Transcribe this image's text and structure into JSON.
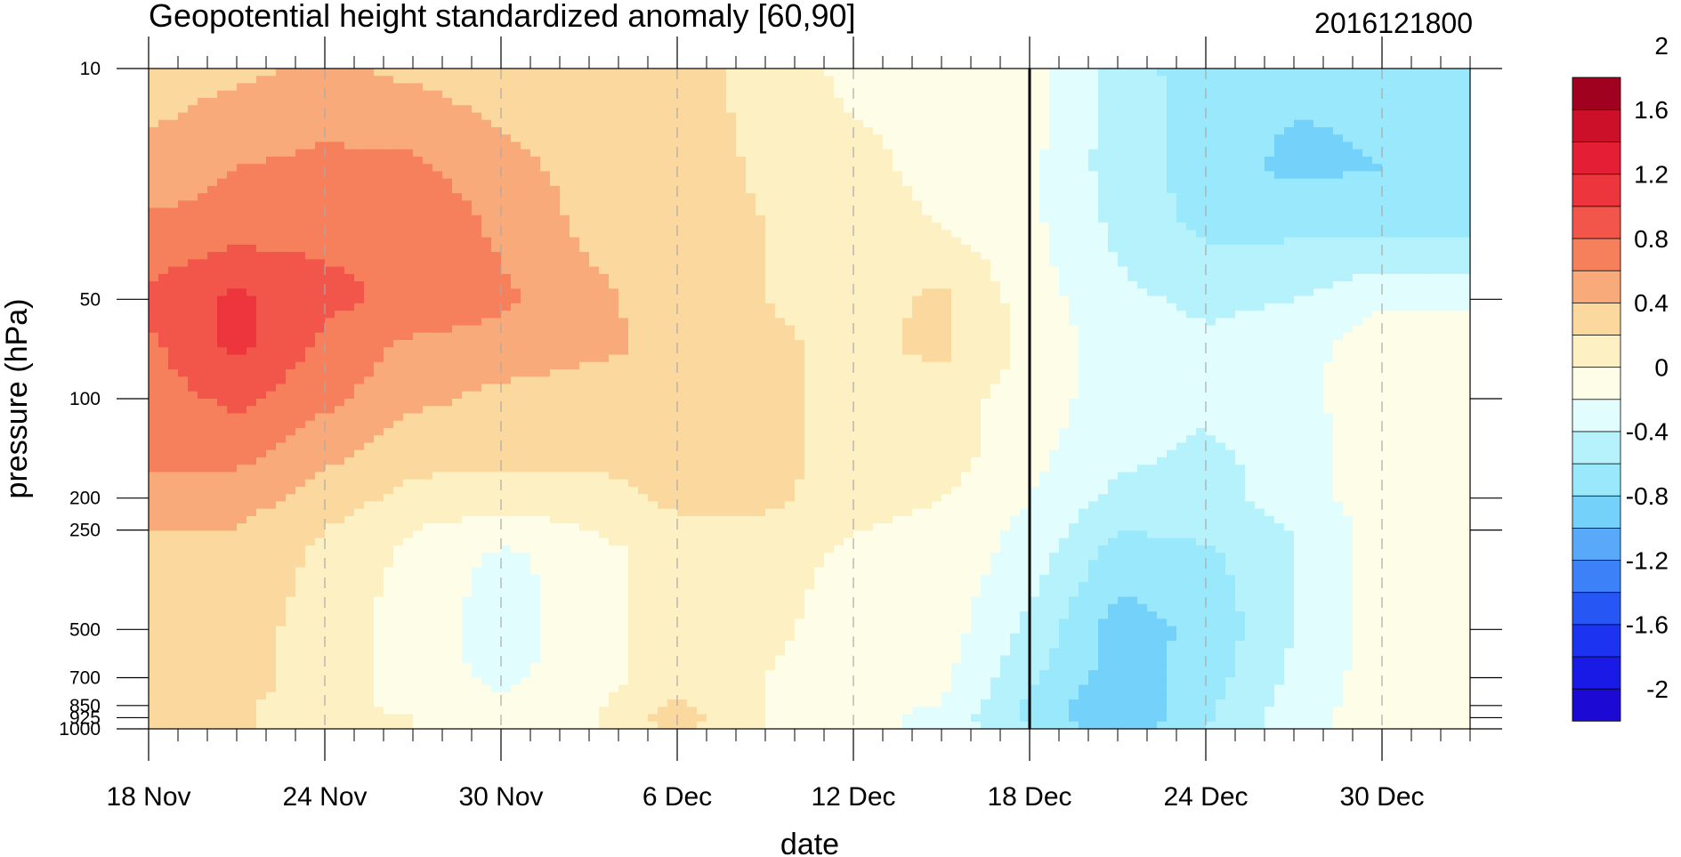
{
  "chart_data": {
    "type": "heatmap",
    "title": "Geopotential height standardized anomaly [60,90]",
    "date_stamp": "2016121800",
    "xlabel": "date",
    "ylabel": "pressure (hPa)",
    "x_start": "2016-11-18",
    "x_end": "2017-01-02",
    "x_ticks": [
      {
        "date": "2016-11-18",
        "label": "18 Nov"
      },
      {
        "date": "2016-11-24",
        "label": "24 Nov"
      },
      {
        "date": "2016-11-30",
        "label": "30 Nov"
      },
      {
        "date": "2016-12-06",
        "label": "6 Dec"
      },
      {
        "date": "2016-12-12",
        "label": "12 Dec"
      },
      {
        "date": "2016-12-18",
        "label": "18 Dec"
      },
      {
        "date": "2016-12-24",
        "label": "24 Dec"
      },
      {
        "date": "2016-12-30",
        "label": "30 Dec"
      }
    ],
    "current_date": "2016-12-18",
    "y_scale": "log",
    "y_reversed": true,
    "ylim": [
      1000,
      10
    ],
    "y_ticks": [
      {
        "value": 10,
        "label": "10"
      },
      {
        "value": 50,
        "label": "50"
      },
      {
        "value": 100,
        "label": "100"
      },
      {
        "value": 200,
        "label": "200"
      },
      {
        "value": 250,
        "label": "250"
      },
      {
        "value": 500,
        "label": "500"
      },
      {
        "value": 700,
        "label": "700"
      },
      {
        "value": 850,
        "label": "850"
      },
      {
        "value": 925,
        "label": "925"
      },
      {
        "value": 1000,
        "label": "1000"
      }
    ],
    "contour_interval": 0.2,
    "colorbar": {
      "colors": [
        "#1c09d3",
        "#1a1ae6",
        "#1d33f2",
        "#2656f4",
        "#3d81f8",
        "#58a9f9",
        "#74d2fa",
        "#99e8fc",
        "#b6f2fb",
        "#e1fdfe",
        "#fdfde8",
        "#fdf1c4",
        "#fbd89e",
        "#f9aa7a",
        "#f7805c",
        "#f2564a",
        "#ed353d",
        "#e41f35",
        "#cc102a",
        "#a0011f"
      ],
      "labels": [
        "-2",
        "-1.6",
        "-1.2",
        "-0.8",
        "-0.4",
        "0",
        "0.4",
        "0.8",
        "1.2",
        "1.6",
        "2"
      ]
    },
    "anomaly_grid": {
      "pressure_levels": [
        10,
        20,
        30,
        50,
        70,
        100,
        150,
        200,
        250,
        300,
        500,
        700,
        850,
        925,
        1000
      ],
      "dates": [
        "2016-11-18",
        "2016-11-21",
        "2016-11-24",
        "2016-11-27",
        "2016-11-30",
        "2016-12-03",
        "2016-12-06",
        "2016-12-09",
        "2016-12-12",
        "2016-12-15",
        "2016-12-18",
        "2016-12-21",
        "2016-12-24",
        "2016-12-27",
        "2016-12-30",
        "2017-01-02"
      ],
      "values": [
        [
          0.5,
          0.55,
          0.65,
          0.55,
          0.5,
          0.5,
          0.5,
          0.3,
          0.15,
          0.15,
          0.1,
          -0.3,
          -0.5,
          -0.55,
          -0.55,
          -0.5
        ],
        [
          0.65,
          0.8,
          0.85,
          0.85,
          0.65,
          0.55,
          0.55,
          0.35,
          0.25,
          0.15,
          0.05,
          -0.3,
          -0.5,
          -0.65,
          -0.6,
          -0.5
        ],
        [
          0.85,
          0.9,
          0.95,
          1.0,
          0.75,
          0.55,
          0.55,
          0.4,
          0.25,
          0.2,
          0.05,
          -0.25,
          -0.45,
          -0.45,
          -0.45,
          -0.45
        ],
        [
          1.05,
          1.25,
          1.05,
          0.95,
          0.85,
          0.65,
          0.5,
          0.4,
          0.3,
          0.45,
          0.1,
          -0.15,
          -0.25,
          -0.2,
          -0.05,
          -0.05
        ],
        [
          0.95,
          1.25,
          0.95,
          0.75,
          0.7,
          0.65,
          0.55,
          0.45,
          0.35,
          0.45,
          0.15,
          -0.1,
          -0.15,
          -0.1,
          0.15,
          0.15
        ],
        [
          0.9,
          1.05,
          0.85,
          0.65,
          0.55,
          0.5,
          0.45,
          0.45,
          0.35,
          0.3,
          0.1,
          -0.1,
          -0.15,
          -0.05,
          0.1,
          0.1
        ],
        [
          0.85,
          0.85,
          0.65,
          0.45,
          0.45,
          0.45,
          0.45,
          0.45,
          0.35,
          0.3,
          0.05,
          -0.15,
          -0.25,
          -0.1,
          0.1,
          0.1
        ],
        [
          0.7,
          0.7,
          0.5,
          0.35,
          0.3,
          0.3,
          0.45,
          0.45,
          0.3,
          0.2,
          0.0,
          -0.25,
          -0.3,
          -0.1,
          0.1,
          0.1
        ],
        [
          0.6,
          0.6,
          0.4,
          0.2,
          0.1,
          0.2,
          0.35,
          0.35,
          0.2,
          0.15,
          -0.05,
          -0.4,
          -0.35,
          -0.2,
          0.1,
          0.1
        ],
        [
          0.55,
          0.55,
          0.35,
          0.15,
          -0.05,
          0.1,
          0.3,
          0.3,
          0.15,
          0.15,
          -0.1,
          -0.5,
          -0.45,
          -0.2,
          0.1,
          0.1
        ],
        [
          0.55,
          0.5,
          0.3,
          0.1,
          -0.1,
          0.1,
          0.3,
          0.25,
          0.1,
          0.1,
          -0.25,
          -0.7,
          -0.55,
          -0.2,
          0.1,
          0.1
        ],
        [
          0.55,
          0.5,
          0.3,
          0.1,
          -0.05,
          0.1,
          0.3,
          0.2,
          0.1,
          0.05,
          -0.35,
          -0.7,
          -0.5,
          -0.15,
          0.1,
          0.1
        ],
        [
          0.5,
          0.45,
          0.25,
          0.15,
          0.05,
          0.15,
          0.45,
          0.2,
          0.05,
          0.0,
          -0.45,
          -0.8,
          -0.45,
          -0.1,
          0.1,
          0.1
        ],
        [
          0.45,
          0.45,
          0.25,
          0.2,
          0.1,
          0.15,
          0.5,
          0.2,
          0.05,
          -0.05,
          -0.45,
          -0.8,
          -0.45,
          -0.1,
          0.1,
          0.1
        ],
        [
          0.45,
          0.45,
          0.25,
          0.2,
          0.1,
          0.15,
          0.45,
          0.2,
          0.05,
          -0.05,
          -0.4,
          -0.7,
          -0.4,
          -0.05,
          0.1,
          0.1
        ]
      ]
    }
  }
}
